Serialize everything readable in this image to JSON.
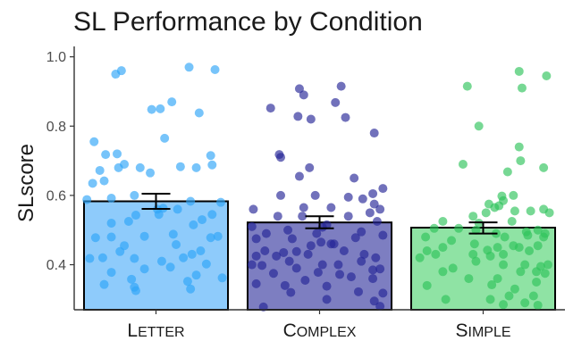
{
  "chart_data": {
    "type": "bar",
    "title": "SL Performance by Condition",
    "xlabel": "",
    "ylabel": "SLscore",
    "ylim": [
      0.27,
      1.03
    ],
    "yticks": [
      0.4,
      0.6,
      0.8,
      1.0
    ],
    "ytick_labels": [
      "0.4",
      "0.6",
      "0.8",
      "1.0"
    ],
    "grid": false,
    "legend": "none",
    "categories": [
      {
        "key": "letter",
        "first": "L",
        "rest": "ETTER"
      },
      {
        "key": "complex",
        "first": "C",
        "rest": "OMPLEX"
      },
      {
        "key": "simple",
        "first": "S",
        "rest": "IMPLE"
      }
    ],
    "values": [
      0.583,
      0.522,
      0.507
    ],
    "error_low": [
      0.561,
      0.505,
      0.49
    ],
    "error_high": [
      0.605,
      0.54,
      0.522
    ],
    "bar_fill": [
      "#8ecbfb",
      "#7d7ec1",
      "#8fe3a4"
    ],
    "point_color": [
      "#2ea4f8",
      "#252596",
      "#2ec35a"
    ],
    "points": [
      [
        [
          -0.28,
          0.95
        ],
        [
          -0.24,
          0.96
        ],
        [
          0.23,
          0.97
        ],
        [
          0.41,
          0.963
        ],
        [
          -0.03,
          0.848
        ],
        [
          0.11,
          0.87
        ],
        [
          0.03,
          0.85
        ],
        [
          0.3,
          0.838
        ],
        [
          -0.43,
          0.755
        ],
        [
          0.06,
          0.765
        ],
        [
          -0.35,
          0.718
        ],
        [
          -0.27,
          0.72
        ],
        [
          0.38,
          0.715
        ],
        [
          -0.22,
          0.69
        ],
        [
          -0.39,
          0.672
        ],
        [
          -0.26,
          0.68
        ],
        [
          -0.11,
          0.68
        ],
        [
          0.17,
          0.683
        ],
        [
          0.28,
          0.68
        ],
        [
          -0.04,
          0.665
        ],
        [
          -0.44,
          0.635
        ],
        [
          -0.36,
          0.642
        ],
        [
          0.39,
          0.688
        ],
        [
          -0.15,
          0.6
        ],
        [
          -0.48,
          0.588
        ],
        [
          -0.31,
          0.592
        ],
        [
          0.24,
          0.583
        ],
        [
          0.45,
          0.58
        ],
        [
          0.05,
          0.563
        ],
        [
          0.01,
          0.56
        ],
        [
          -0.14,
          0.543
        ],
        [
          0.02,
          0.545
        ],
        [
          0.15,
          0.56
        ],
        [
          0.39,
          0.545
        ],
        [
          -0.31,
          0.52
        ],
        [
          -0.19,
          0.525
        ],
        [
          0.26,
          0.515
        ],
        [
          0.32,
          0.53
        ],
        [
          0.12,
          0.488
        ],
        [
          -0.42,
          0.478
        ],
        [
          -0.31,
          0.48
        ],
        [
          -0.08,
          0.482
        ],
        [
          0.38,
          0.478
        ],
        [
          0.43,
          0.482
        ],
        [
          -0.22,
          0.455
        ],
        [
          0.14,
          0.458
        ],
        [
          -0.25,
          0.438
        ],
        [
          0.31,
          0.44
        ],
        [
          -0.46,
          0.418
        ],
        [
          -0.37,
          0.42
        ],
        [
          -0.15,
          0.418
        ],
        [
          0.25,
          0.43
        ],
        [
          0.19,
          0.42
        ],
        [
          0.04,
          0.41
        ],
        [
          0.35,
          0.402
        ],
        [
          -0.08,
          0.388
        ],
        [
          0.1,
          0.393
        ],
        [
          -0.31,
          0.378
        ],
        [
          0.28,
          0.37
        ],
        [
          0.46,
          0.362
        ],
        [
          -0.17,
          0.358
        ],
        [
          0.22,
          0.352
        ],
        [
          -0.36,
          0.343
        ],
        [
          -0.15,
          0.335
        ],
        [
          -0.14,
          0.325
        ],
        [
          0.24,
          0.33
        ]
      ],
      [
        [
          -0.14,
          0.908
        ],
        [
          0.15,
          0.915
        ],
        [
          -0.11,
          0.89
        ],
        [
          -0.34,
          0.852
        ],
        [
          0.11,
          0.868
        ],
        [
          -0.15,
          0.828
        ],
        [
          -0.06,
          0.82
        ],
        [
          0.18,
          0.825
        ],
        [
          0.38,
          0.78
        ],
        [
          -0.28,
          0.718
        ],
        [
          -0.27,
          0.71
        ],
        [
          -0.07,
          0.68
        ],
        [
          -0.14,
          0.655
        ],
        [
          0.24,
          0.65
        ],
        [
          0.44,
          0.62
        ],
        [
          -0.27,
          0.6
        ],
        [
          -0.03,
          0.6
        ],
        [
          0.37,
          0.605
        ],
        [
          0.2,
          0.595
        ],
        [
          0.3,
          0.59
        ],
        [
          -0.11,
          0.565
        ],
        [
          0.08,
          0.565
        ],
        [
          -0.46,
          0.56
        ],
        [
          0.38,
          0.575
        ],
        [
          0.42,
          0.56
        ],
        [
          -0.29,
          0.54
        ],
        [
          -0.12,
          0.54
        ],
        [
          0.2,
          0.54
        ],
        [
          0.35,
          0.55
        ],
        [
          -0.47,
          0.51
        ],
        [
          0.05,
          0.515
        ],
        [
          0.4,
          0.525
        ],
        [
          -0.22,
          0.5
        ],
        [
          0.02,
          0.508
        ],
        [
          -0.37,
          0.49
        ],
        [
          -0.02,
          0.49
        ],
        [
          0.29,
          0.495
        ],
        [
          0.44,
          0.485
        ],
        [
          -0.44,
          0.475
        ],
        [
          -0.19,
          0.475
        ],
        [
          0.25,
          0.478
        ],
        [
          0.01,
          0.465
        ],
        [
          0.08,
          0.46
        ],
        [
          -0.06,
          0.455
        ],
        [
          0.1,
          0.46
        ],
        [
          -0.38,
          0.44
        ],
        [
          -0.25,
          0.435
        ],
        [
          -0.16,
          0.438
        ],
        [
          0.17,
          0.44
        ],
        [
          -0.44,
          0.425
        ],
        [
          -0.08,
          0.43
        ],
        [
          -0.3,
          0.425
        ],
        [
          0.31,
          0.43
        ],
        [
          0.39,
          0.42
        ],
        [
          0.29,
          0.41
        ],
        [
          -0.21,
          0.41
        ],
        [
          -0.47,
          0.4
        ],
        [
          -0.4,
          0.398
        ],
        [
          0.02,
          0.4
        ],
        [
          0.13,
          0.4
        ],
        [
          -0.16,
          0.39
        ],
        [
          0.37,
          0.385
        ],
        [
          0.42,
          0.388
        ],
        [
          -0.01,
          0.378
        ],
        [
          -0.32,
          0.375
        ],
        [
          0.14,
          0.372
        ],
        [
          0.22,
          0.365
        ],
        [
          -0.1,
          0.355
        ],
        [
          0.37,
          0.36
        ],
        [
          -0.44,
          0.345
        ],
        [
          -0.24,
          0.34
        ],
        [
          0.05,
          0.338
        ],
        [
          -0.2,
          0.32
        ],
        [
          0.27,
          0.322
        ],
        [
          0.44,
          0.318
        ],
        [
          0.05,
          0.3
        ],
        [
          0.38,
          0.295
        ],
        [
          0.42,
          0.28
        ],
        [
          -0.39,
          0.278
        ]
      ],
      [
        [
          0.25,
          0.958
        ],
        [
          -0.11,
          0.915
        ],
        [
          0.27,
          0.91
        ],
        [
          0.44,
          0.945
        ],
        [
          -0.03,
          0.8
        ],
        [
          0.25,
          0.74
        ],
        [
          0.26,
          0.7
        ],
        [
          0.42,
          0.68
        ],
        [
          -0.14,
          0.69
        ],
        [
          0.17,
          0.668
        ],
        [
          0.13,
          0.598
        ],
        [
          0.14,
          0.585
        ],
        [
          0.21,
          0.6
        ],
        [
          0.04,
          0.575
        ],
        [
          0.08,
          0.565
        ],
        [
          0.11,
          0.57
        ],
        [
          0.42,
          0.56
        ],
        [
          0.46,
          0.55
        ],
        [
          0.02,
          0.55
        ],
        [
          0.22,
          0.555
        ],
        [
          0.33,
          0.555
        ],
        [
          -0.07,
          0.54
        ],
        [
          -0.28,
          0.525
        ],
        [
          -0.03,
          0.52
        ],
        [
          0.2,
          0.525
        ],
        [
          -0.34,
          0.505
        ],
        [
          -0.17,
          0.505
        ],
        [
          -0.05,
          0.5
        ],
        [
          0.09,
          0.49
        ],
        [
          0.3,
          0.495
        ],
        [
          0.38,
          0.5
        ],
        [
          0.43,
          0.49
        ],
        [
          -0.4,
          0.48
        ],
        [
          0.15,
          0.48
        ],
        [
          0.31,
          0.485
        ],
        [
          0.42,
          0.48
        ],
        [
          -0.22,
          0.47
        ],
        [
          -0.06,
          0.46
        ],
        [
          -0.28,
          0.45
        ],
        [
          0.1,
          0.45
        ],
        [
          0.21,
          0.455
        ],
        [
          0.25,
          0.45
        ],
        [
          0.38,
          0.455
        ],
        [
          -0.39,
          0.44
        ],
        [
          0.03,
          0.442
        ],
        [
          0.32,
          0.44
        ],
        [
          -0.33,
          0.43
        ],
        [
          -0.07,
          0.43
        ],
        [
          0.14,
          0.43
        ],
        [
          -0.44,
          0.42
        ],
        [
          0.05,
          0.425
        ],
        [
          -0.05,
          0.41
        ],
        [
          0.14,
          0.4
        ],
        [
          0.29,
          0.4
        ],
        [
          0.4,
          0.395
        ],
        [
          0.45,
          0.4
        ],
        [
          -0.21,
          0.39
        ],
        [
          -0.28,
          0.38
        ],
        [
          0.26,
          0.38
        ],
        [
          0.37,
          0.38
        ],
        [
          0.43,
          0.375
        ],
        [
          -0.1,
          0.36
        ],
        [
          0.1,
          0.36
        ],
        [
          0.37,
          0.35
        ],
        [
          -0.39,
          0.34
        ],
        [
          0.06,
          0.342
        ],
        [
          0.22,
          0.33
        ],
        [
          0.18,
          0.31
        ],
        [
          0.35,
          0.31
        ],
        [
          -0.26,
          0.3
        ],
        [
          0.05,
          0.3
        ],
        [
          0.14,
          0.285
        ],
        [
          0.38,
          0.283
        ],
        [
          0.29,
          0.29
        ]
      ]
    ]
  }
}
